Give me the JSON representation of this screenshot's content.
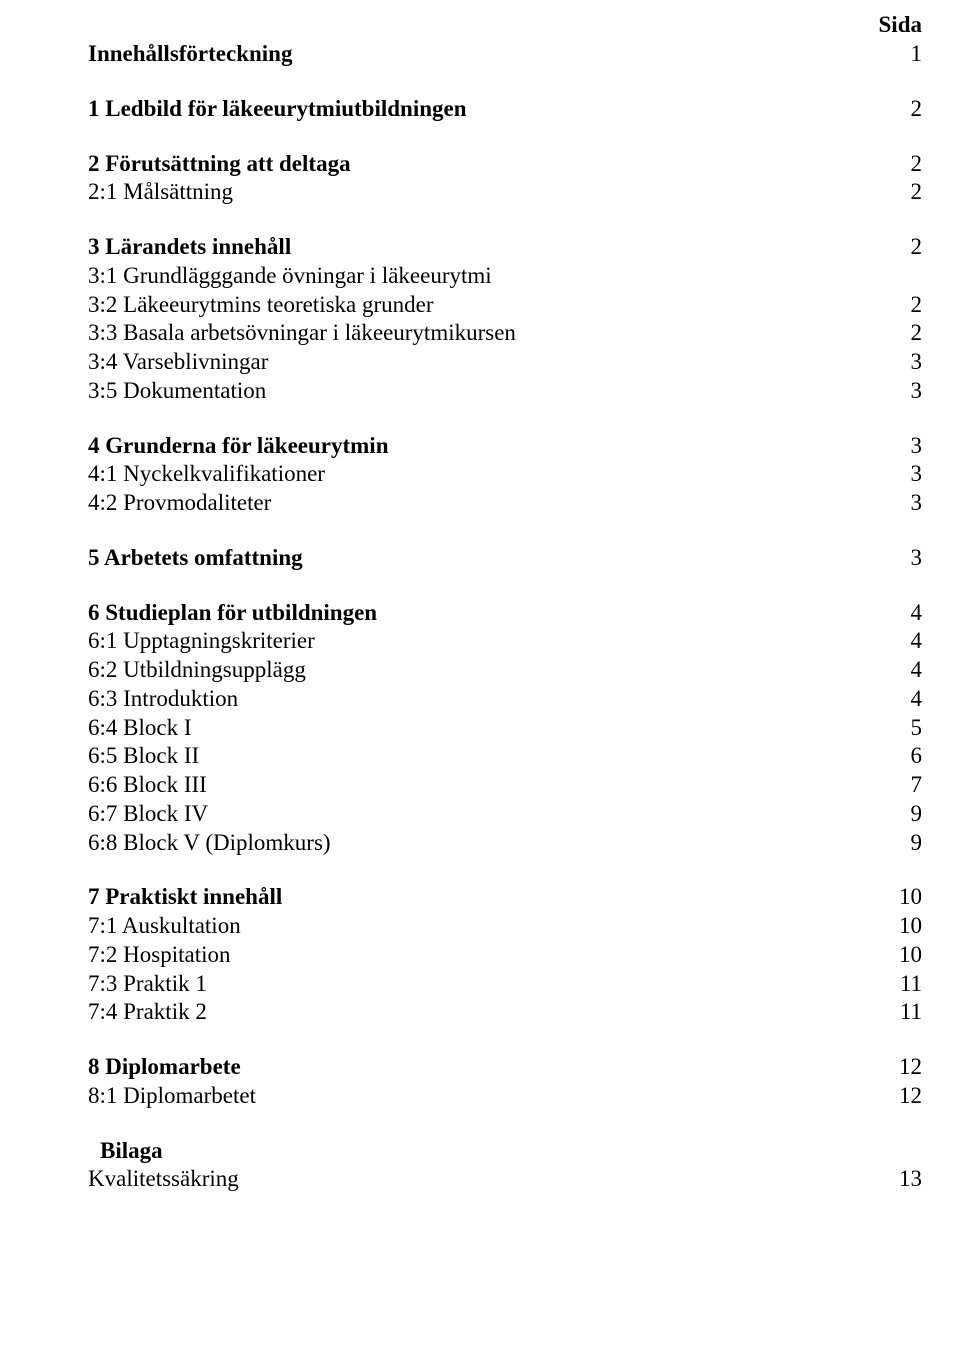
{
  "header": {
    "sida": "Sida"
  },
  "toc": [
    {
      "label": "Innehållsförteckning",
      "page": "1",
      "bold": true,
      "indent": false
    },
    {
      "gap": true
    },
    {
      "label": "1 Ledbild för läkeeurytmiutbildningen",
      "page": "2",
      "bold": true,
      "indent": false
    },
    {
      "gap": true
    },
    {
      "label": "2 Förutsättning att deltaga",
      "page": "2",
      "bold": true,
      "indent": false
    },
    {
      "label": "2:1 Målsättning",
      "page": "2",
      "bold": false,
      "indent": false
    },
    {
      "gap": true
    },
    {
      "label": "3 Lärandets innehåll",
      "page": "2",
      "bold": true,
      "indent": false
    },
    {
      "label": "3:1 Grundlägggande övningar i läkeeurytmi",
      "page": "",
      "bold": false,
      "indent": false
    },
    {
      "label": "3:2 Läkeeurytmins teoretiska grunder",
      "page": "2",
      "bold": false,
      "indent": false
    },
    {
      "label": "3:3 Basala arbetsövningar i läkeeurytmikursen",
      "page": "2",
      "bold": false,
      "indent": false
    },
    {
      "label": "3:4 Varseblivningar",
      "page": "3",
      "bold": false,
      "indent": false
    },
    {
      "label": "3:5 Dokumentation",
      "page": "3",
      "bold": false,
      "indent": false
    },
    {
      "gap": true
    },
    {
      "label": "4 Grunderna för läkeeurytmin",
      "page": "3",
      "bold": true,
      "indent": false
    },
    {
      "label": "4:1 Nyckelkvalifikationer",
      "page": "3",
      "bold": false,
      "indent": false
    },
    {
      "label": "4:2 Provmodaliteter",
      "page": "3",
      "bold": false,
      "indent": false
    },
    {
      "gap": true
    },
    {
      "label": "5 Arbetets omfattning",
      "page": "3",
      "bold": true,
      "indent": false
    },
    {
      "gap": true
    },
    {
      "label": "6 Studieplan för utbildningen",
      "page": "4",
      "bold": true,
      "indent": false
    },
    {
      "label": "6:1 Upptagningskriterier",
      "page": "4",
      "bold": false,
      "indent": false
    },
    {
      "label": "6:2 Utbildningsupplägg",
      "page": "4",
      "bold": false,
      "indent": false
    },
    {
      "label": "6:3 Introduktion",
      "page": "4",
      "bold": false,
      "indent": false
    },
    {
      "label": "6:4 Block I",
      "page": "5",
      "bold": false,
      "indent": false
    },
    {
      "label": "6:5 Block II",
      "page": "6",
      "bold": false,
      "indent": false
    },
    {
      "label": "6:6 Block III",
      "page": "7",
      "bold": false,
      "indent": false
    },
    {
      "label": "6:7 Block IV",
      "page": "9",
      "bold": false,
      "indent": false
    },
    {
      "label": "6:8 Block V (Diplomkurs)",
      "page": "9",
      "bold": false,
      "indent": false
    },
    {
      "gap": true
    },
    {
      "label": "7 Praktiskt innehåll",
      "page": "10",
      "bold": true,
      "indent": false
    },
    {
      "label": "7:1 Auskultation",
      "page": "10",
      "bold": false,
      "indent": false
    },
    {
      "label": "7:2 Hospitation",
      "page": "10",
      "bold": false,
      "indent": false
    },
    {
      "label": "7:3 Praktik 1",
      "page": "11",
      "bold": false,
      "indent": false
    },
    {
      "label": "7:4 Praktik 2",
      "page": "11",
      "bold": false,
      "indent": false
    },
    {
      "gap": true
    },
    {
      "label": "8 Diplomarbete",
      "page": "12",
      "bold": true,
      "indent": false
    },
    {
      "label": "8:1 Diplomarbetet",
      "page": "12",
      "bold": false,
      "indent": false
    },
    {
      "gap": true
    },
    {
      "label": "Bilaga",
      "page": "",
      "bold": true,
      "indent": true
    },
    {
      "label": "Kvalitetssäkring",
      "page": "13",
      "bold": false,
      "indent": false
    }
  ]
}
